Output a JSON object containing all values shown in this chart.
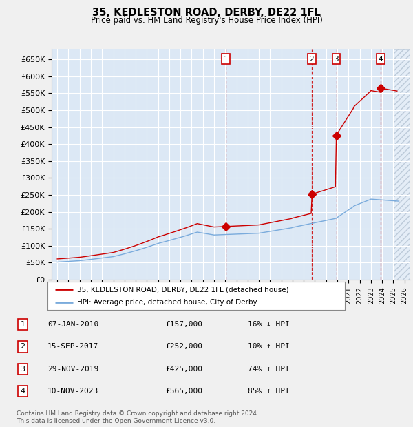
{
  "title": "35, KEDLESTON ROAD, DERBY, DE22 1FL",
  "subtitle": "Price paid vs. HM Land Registry's House Price Index (HPI)",
  "ylim": [
    0,
    680000
  ],
  "xlim": [
    1994.5,
    2026.5
  ],
  "yticks": [
    0,
    50000,
    100000,
    150000,
    200000,
    250000,
    300000,
    350000,
    400000,
    450000,
    500000,
    550000,
    600000,
    650000
  ],
  "ytick_labels": [
    "£0",
    "£50K",
    "£100K",
    "£150K",
    "£200K",
    "£250K",
    "£300K",
    "£350K",
    "£400K",
    "£450K",
    "£500K",
    "£550K",
    "£600K",
    "£650K"
  ],
  "sale_dates": [
    2010.04,
    2017.71,
    2019.91,
    2023.86
  ],
  "sale_prices": [
    157000,
    252000,
    425000,
    565000
  ],
  "sale_labels": [
    "1",
    "2",
    "3",
    "4"
  ],
  "sale_info": [
    {
      "num": "1",
      "date": "07-JAN-2010",
      "price": "£157,000",
      "hpi": "16% ↓ HPI"
    },
    {
      "num": "2",
      "date": "15-SEP-2017",
      "price": "£252,000",
      "hpi": "10% ↑ HPI"
    },
    {
      "num": "3",
      "date": "29-NOV-2019",
      "price": "£425,000",
      "hpi": "74% ↑ HPI"
    },
    {
      "num": "4",
      "date": "10-NOV-2023",
      "price": "£565,000",
      "hpi": "85% ↑ HPI"
    }
  ],
  "legend_property_label": "35, KEDLESTON ROAD, DERBY, DE22 1FL (detached house)",
  "legend_hpi_label": "HPI: Average price, detached house, City of Derby",
  "footer": "Contains HM Land Registry data © Crown copyright and database right 2024.\nThis data is licensed under the Open Government Licence v3.0.",
  "hpi_color": "#7aabdc",
  "property_color": "#cc0000",
  "plot_bg_color": "#dce8f5",
  "grid_color": "#ffffff",
  "future_start": 2025.0
}
